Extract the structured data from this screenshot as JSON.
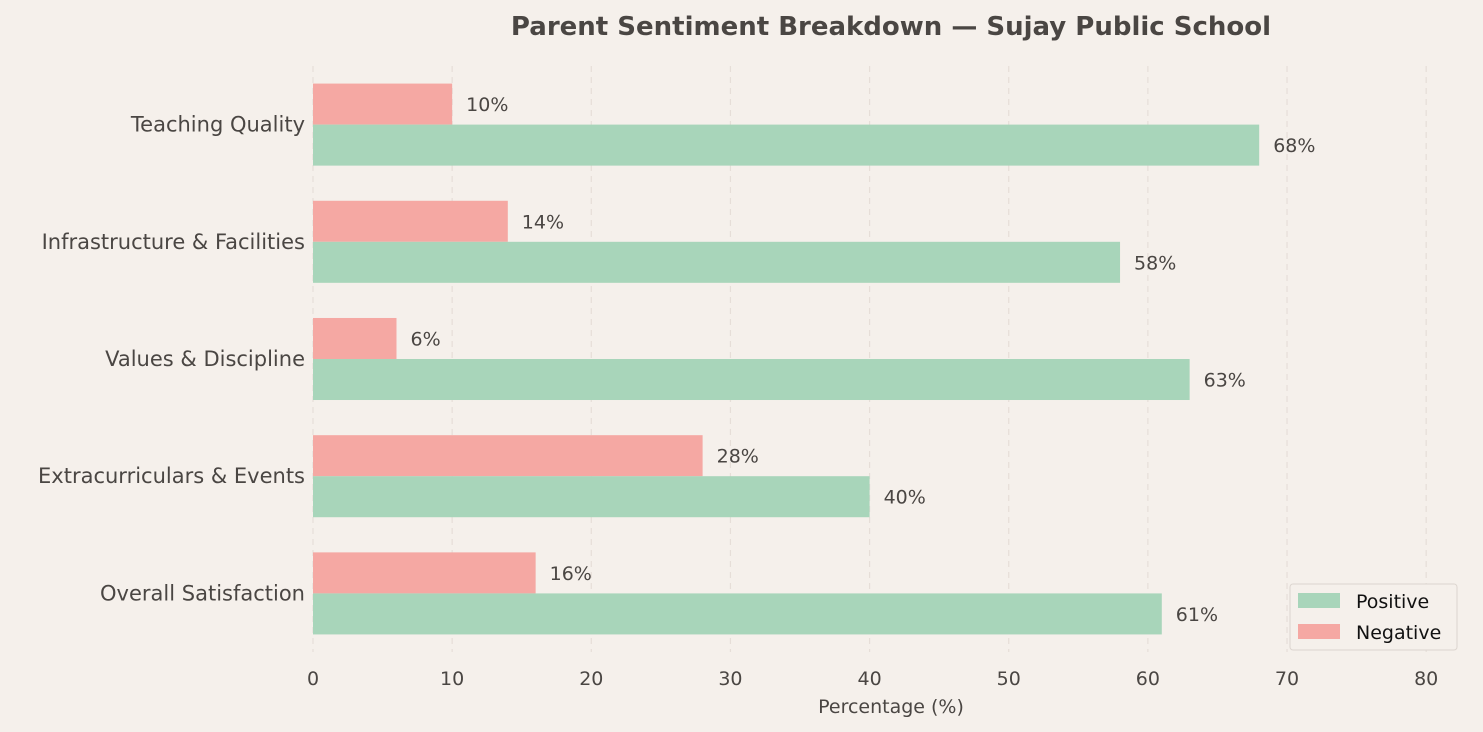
{
  "chart_data": {
    "type": "bar",
    "orientation": "horizontal",
    "title": "Parent Sentiment Breakdown — Sujay Public School",
    "xlabel": "Percentage (%)",
    "ylabel": "",
    "categories": [
      "Teaching Quality",
      "Infrastructure & Facilities",
      "Values & Discipline",
      "Extracurriculars & Events",
      "Overall Satisfaction"
    ],
    "series": [
      {
        "name": "Positive",
        "values": [
          68,
          58,
          63,
          40,
          61
        ],
        "color": "#a8d5ba"
      },
      {
        "name": "Negative",
        "values": [
          10,
          14,
          6,
          28,
          16
        ],
        "color": "#f5a8a3"
      }
    ],
    "value_suffix": "%",
    "xlim": [
      0,
      82
    ],
    "xticks": [
      0,
      10,
      20,
      30,
      40,
      50,
      60,
      70,
      80
    ],
    "grid": "vertical, dashed",
    "legend_position": "lower-right"
  },
  "colors": {
    "background": "#f5f0eb",
    "text": "#4a4643",
    "grid": "#e6ded8"
  }
}
